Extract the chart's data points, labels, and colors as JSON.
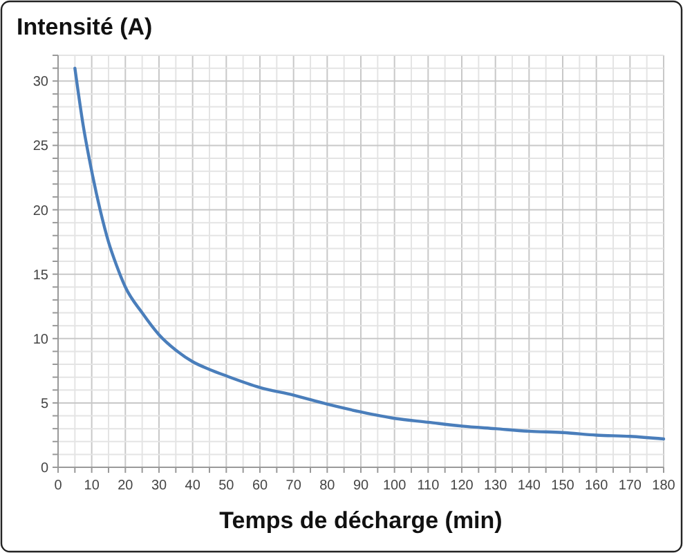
{
  "chart_data": {
    "type": "line",
    "title": "Intensité (A)",
    "xlabel": "Temps de décharge (min)",
    "x": [
      5,
      7.5,
      10,
      12.5,
      15,
      17.5,
      20,
      25,
      30,
      35,
      40,
      45,
      50,
      60,
      70,
      80,
      90,
      100,
      110,
      120,
      130,
      140,
      150,
      160,
      170,
      180
    ],
    "series": [
      {
        "color": "#4a7ebb",
        "values": [
          31,
          26.5,
          23,
          20,
          17.5,
          15.6,
          14,
          12,
          10.3,
          9.1,
          8.2,
          7.6,
          7.1,
          6.2,
          5.6,
          4.9,
          4.3,
          3.8,
          3.5,
          3.2,
          3.0,
          2.8,
          2.7,
          2.5,
          2.4,
          2.2
        ]
      }
    ],
    "xlim": [
      0,
      180
    ],
    "ylim": [
      0,
      32
    ],
    "xticks": [
      0,
      {
        "value": 5,
        "label": null
      },
      10,
      {
        "value": 15,
        "label": null
      },
      20,
      {
        "value": 25,
        "label": null
      },
      30,
      {
        "value": 35,
        "label": null
      },
      40,
      {
        "value": 45,
        "label": null
      },
      50,
      {
        "value": 55,
        "label": null
      },
      60,
      {
        "value": 65,
        "label": null
      },
      70,
      {
        "value": 75,
        "label": null
      },
      80,
      {
        "value": 85,
        "label": null
      },
      90,
      {
        "value": 95,
        "label": null
      },
      100,
      {
        "value": 105,
        "label": null
      },
      110,
      {
        "value": 115,
        "label": null
      },
      120,
      {
        "value": 125,
        "label": null
      },
      130,
      {
        "value": 135,
        "label": null
      },
      140,
      {
        "value": 145,
        "label": null
      },
      150,
      {
        "value": 155,
        "label": null
      },
      160,
      {
        "value": 165,
        "label": null
      },
      170,
      {
        "value": 175,
        "label": null
      },
      180
    ],
    "yticks": [
      0,
      {
        "value": 1,
        "label": null
      },
      {
        "value": 2,
        "label": null
      },
      {
        "value": 3,
        "label": null
      },
      {
        "value": 4,
        "label": null
      },
      5,
      {
        "value": 6,
        "label": null
      },
      {
        "value": 7,
        "label": null
      },
      {
        "value": 8,
        "label": null
      },
      {
        "value": 9,
        "label": null
      },
      10,
      {
        "value": 11,
        "label": null
      },
      {
        "value": 12,
        "label": null
      },
      {
        "value": 13,
        "label": null
      },
      {
        "value": 14,
        "label": null
      },
      15,
      {
        "value": 16,
        "label": null
      },
      {
        "value": 17,
        "label": null
      },
      {
        "value": 18,
        "label": null
      },
      {
        "value": 19,
        "label": null
      },
      20,
      {
        "value": 21,
        "label": null
      },
      {
        "value": 22,
        "label": null
      },
      {
        "value": 23,
        "label": null
      },
      {
        "value": 24,
        "label": null
      },
      25,
      {
        "value": 26,
        "label": null
      },
      {
        "value": 27,
        "label": null
      },
      {
        "value": 28,
        "label": null
      },
      {
        "value": 29,
        "label": null
      },
      30,
      {
        "value": 31,
        "label": null
      },
      {
        "value": 32,
        "label": null
      }
    ],
    "grid": true,
    "marker": "none",
    "line_style": "solid"
  }
}
